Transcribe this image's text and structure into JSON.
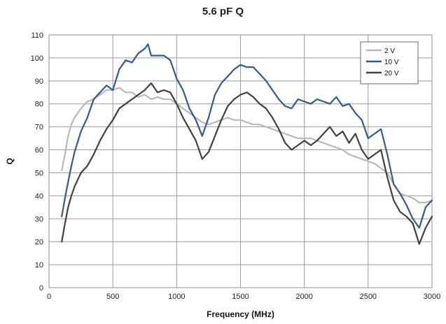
{
  "chart_data": {
    "type": "line",
    "title": "5.6 pF Q",
    "xlabel": "Frequency (MHz)",
    "ylabel": "Q",
    "xlim": [
      0,
      3000
    ],
    "ylim": [
      0,
      110
    ],
    "x_ticks": [
      0,
      500,
      1000,
      1500,
      2000,
      2500,
      3000
    ],
    "y_ticks": [
      0,
      10,
      20,
      30,
      40,
      50,
      60,
      70,
      80,
      90,
      100,
      110
    ],
    "grid": "vertical-and-horizontal",
    "legend_position": "top-right",
    "series": [
      {
        "name": "2 V",
        "color": "#b8b8b8",
        "x": [
          100,
          125,
          150,
          175,
          200,
          250,
          300,
          350,
          400,
          450,
          500,
          550,
          600,
          650,
          700,
          750,
          800,
          850,
          900,
          950,
          1000,
          1050,
          1100,
          1150,
          1200,
          1250,
          1300,
          1350,
          1400,
          1450,
          1500,
          1550,
          1600,
          1650,
          1700,
          1750,
          1800,
          1850,
          1900,
          1950,
          2000,
          2050,
          2100,
          2150,
          2200,
          2250,
          2300,
          2350,
          2400,
          2450,
          2500,
          2550,
          2600,
          2650,
          2700,
          2750,
          2800,
          2850,
          2900,
          2950,
          3000
        ],
        "y": [
          51,
          58,
          66,
          71,
          74,
          78,
          81,
          82,
          84,
          86,
          86,
          87,
          85,
          85,
          83,
          84,
          82,
          83,
          82,
          82,
          80,
          78,
          76,
          74,
          72,
          71,
          72,
          73,
          74,
          73,
          73,
          72,
          71,
          71,
          70,
          69,
          68,
          67,
          66,
          65,
          65,
          65,
          64,
          63,
          62,
          61,
          60,
          58,
          57,
          56,
          55,
          54,
          52,
          50,
          45,
          41,
          40,
          39,
          37,
          37,
          38
        ]
      },
      {
        "name": "10 V",
        "color": "#2f5b93",
        "x": [
          100,
          125,
          150,
          175,
          200,
          250,
          300,
          350,
          400,
          450,
          500,
          550,
          600,
          650,
          700,
          750,
          775,
          800,
          850,
          900,
          950,
          1000,
          1050,
          1100,
          1150,
          1200,
          1250,
          1300,
          1350,
          1400,
          1450,
          1500,
          1550,
          1600,
          1650,
          1700,
          1750,
          1800,
          1850,
          1900,
          1950,
          2000,
          2050,
          2100,
          2150,
          2200,
          2250,
          2300,
          2350,
          2400,
          2450,
          2500,
          2550,
          2600,
          2650,
          2700,
          2750,
          2800,
          2850,
          2900,
          2950,
          3000
        ],
        "y": [
          31,
          39,
          46,
          53,
          59,
          68,
          74,
          82,
          85,
          88,
          86,
          95,
          99,
          98,
          102,
          104,
          106,
          101,
          101,
          101,
          99,
          91,
          86,
          78,
          73,
          66,
          74,
          84,
          89,
          92,
          95,
          97,
          96,
          96,
          93,
          90,
          86,
          82,
          79,
          78,
          82,
          81,
          80,
          82,
          81,
          80,
          83,
          79,
          80,
          76,
          73,
          65,
          67,
          69,
          58,
          45,
          41,
          36,
          30,
          26,
          35,
          38
        ]
      },
      {
        "name": "20 V",
        "color": "#404040",
        "x": [
          100,
          125,
          150,
          175,
          200,
          250,
          300,
          350,
          400,
          450,
          500,
          550,
          600,
          650,
          700,
          750,
          800,
          850,
          900,
          950,
          1000,
          1050,
          1100,
          1150,
          1200,
          1250,
          1300,
          1350,
          1400,
          1450,
          1500,
          1550,
          1600,
          1650,
          1700,
          1750,
          1800,
          1850,
          1900,
          1950,
          2000,
          2050,
          2100,
          2150,
          2200,
          2250,
          2300,
          2350,
          2400,
          2450,
          2500,
          2550,
          2600,
          2650,
          2700,
          2750,
          2800,
          2850,
          2900,
          2950,
          3000
        ],
        "y": [
          20,
          28,
          35,
          40,
          44,
          50,
          53,
          58,
          64,
          69,
          73,
          78,
          80,
          82,
          84,
          86,
          89,
          85,
          86,
          85,
          80,
          74,
          69,
          64,
          56,
          59,
          66,
          73,
          79,
          82,
          84,
          85,
          83,
          80,
          78,
          74,
          69,
          63,
          60,
          62,
          64,
          62,
          64,
          67,
          70,
          66,
          68,
          63,
          67,
          60,
          56,
          58,
          60,
          48,
          38,
          33,
          31,
          28,
          19,
          26,
          31
        ]
      }
    ]
  }
}
